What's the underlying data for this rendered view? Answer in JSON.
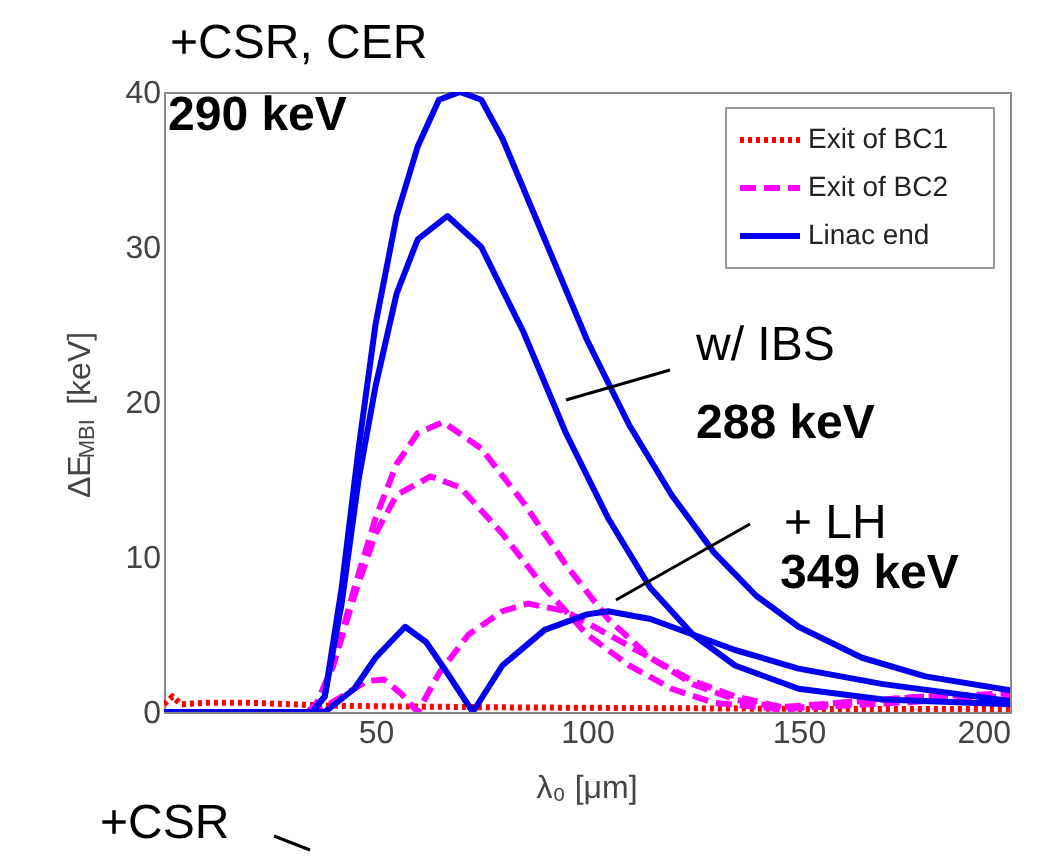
{
  "chart_data": {
    "type": "line",
    "xlabel": "λ₀ [μm]",
    "ylabel": "ΔE$_{MBI}$ [keV]",
    "xlim": [
      0,
      200
    ],
    "ylim": [
      0,
      40
    ],
    "xticks": [
      50,
      100,
      150,
      200
    ],
    "yticks": [
      0,
      10,
      20,
      30,
      40
    ],
    "grid": false,
    "legend": "top right",
    "annotations": [
      "+CSR, CER",
      "290 keV",
      "w/ IBS",
      "288 keV",
      "+ LH",
      "349 keV",
      "+CSR"
    ],
    "series": [
      {
        "name": "Exit of BC1",
        "color": "#ff0000",
        "line_style": "dotted",
        "x": [
          0,
          2,
          4,
          10,
          20,
          40,
          80,
          150,
          200
        ],
        "values": [
          0.5,
          1,
          0.5,
          0.6,
          0.6,
          0.4,
          0.3,
          0.2,
          0.2
        ]
      },
      {
        "name": "Exit of BC2",
        "color": "#ff00ff",
        "line_style": "dashed",
        "x": [
          0,
          34,
          36,
          40,
          45,
          50,
          55,
          60,
          66,
          75,
          85,
          95,
          105,
          115,
          125,
          135,
          145,
          160,
          180,
          200
        ],
        "values": [
          0,
          0,
          0.5,
          3,
          8,
          12.5,
          16,
          18,
          18.7,
          17,
          13.5,
          9.5,
          6,
          3.5,
          1.8,
          0.8,
          0.3,
          0.6,
          1,
          1.2
        ]
      },
      {
        "color": "#ff00ff",
        "line_style": "dashed",
        "x": [
          0,
          34,
          36,
          40,
          45,
          50,
          55,
          63,
          70,
          80,
          90,
          100,
          110,
          120,
          130,
          145,
          160,
          200
        ],
        "values": [
          0,
          0,
          0.5,
          3,
          7.5,
          11.5,
          14,
          15.2,
          14.5,
          11.5,
          8,
          5,
          3,
          1.5,
          0.6,
          0.2,
          0.4,
          1
        ]
      },
      {
        "color": "#ff00ff",
        "line_style": "dashed",
        "x": [
          0,
          36,
          42,
          48,
          52,
          56,
          60,
          65,
          72,
          80,
          86,
          95,
          105,
          115,
          125,
          135,
          148,
          160,
          180,
          200
        ],
        "values": [
          0,
          0,
          1,
          2,
          2.1,
          1.2,
          0,
          2.5,
          5,
          6.5,
          7,
          6.5,
          5,
          3.5,
          2,
          1,
          0.2,
          0.6,
          1,
          1
        ]
      },
      {
        "name": "Linac end",
        "color": "#0000ee",
        "line_style": "solid",
        "x": [
          0,
          35,
          38,
          42,
          46,
          50,
          55,
          60,
          65,
          70,
          75,
          80,
          90,
          100,
          110,
          120,
          130,
          140,
          150,
          165,
          180,
          200
        ],
        "values": [
          0,
          0,
          1,
          8,
          17,
          25,
          32,
          36.5,
          39.5,
          40,
          39.5,
          37,
          30.5,
          24,
          18.5,
          14,
          10.3,
          7.5,
          5.5,
          3.5,
          2.3,
          1.4
        ]
      },
      {
        "color": "#0000ee",
        "line_style": "solid",
        "x": [
          0,
          35,
          38,
          42,
          46,
          50,
          55,
          60,
          67,
          75,
          85,
          95,
          105,
          115,
          125,
          135,
          150,
          170,
          200
        ],
        "values": [
          0,
          0,
          1,
          7,
          15,
          21,
          27,
          30.5,
          32,
          30,
          24.5,
          18,
          12.5,
          8,
          5,
          3,
          1.5,
          0.8,
          0.5
        ]
      },
      {
        "color": "#0000ee",
        "line_style": "solid",
        "x": [
          0,
          38,
          45,
          50,
          57,
          62,
          67,
          73,
          80,
          90,
          100,
          105,
          115,
          125,
          135,
          150,
          170,
          200
        ],
        "values": [
          0,
          0,
          1.5,
          3.5,
          5.5,
          4.5,
          2.5,
          0,
          3,
          5.3,
          6.3,
          6.5,
          6,
          5,
          4,
          2.8,
          1.8,
          0.7
        ]
      }
    ]
  }
}
